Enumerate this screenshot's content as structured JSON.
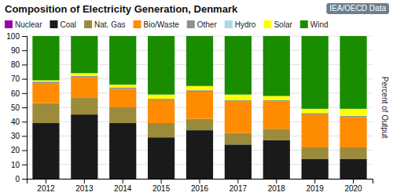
{
  "chart_data": {
    "type": "bar",
    "stacked": true,
    "title": "Composition of Electricity Generation, Denmark",
    "annotations": [
      "IEA/OECD Data"
    ],
    "y_label": "Percent of Output",
    "categories": [
      "2012",
      "2013",
      "2014",
      "2015",
      "2016",
      "2017",
      "2018",
      "2019",
      "2020"
    ],
    "series": [
      {
        "name": "Nuclear",
        "color": "#9B00AA",
        "values": [
          0,
          0,
          0,
          0,
          0,
          0,
          0,
          0,
          0
        ]
      },
      {
        "name": "Coal",
        "color": "#1A1A1A",
        "values": [
          39,
          45,
          39,
          29,
          34,
          24,
          27,
          14,
          14
        ]
      },
      {
        "name": "Nat. Gas",
        "color": "#9B8B3A",
        "values": [
          14,
          12,
          11,
          10,
          8,
          8,
          8,
          8,
          8
        ]
      },
      {
        "name": "Bio/Waste",
        "color": "#FF8C00",
        "values": [
          14,
          14,
          13,
          16,
          19,
          22,
          19,
          23,
          21
        ]
      },
      {
        "name": "Other",
        "color": "#909090",
        "values": [
          1,
          1,
          1,
          1,
          1,
          1,
          1,
          1,
          1
        ]
      },
      {
        "name": "Hydro",
        "color": "#ADD8E6",
        "values": [
          0,
          0,
          0,
          0,
          0,
          0,
          0,
          0,
          0
        ]
      },
      {
        "name": "Solar",
        "color": "#FFFF00",
        "values": [
          1,
          2,
          2,
          3,
          3,
          4,
          3,
          3,
          5
        ]
      },
      {
        "name": "Wind",
        "color": "#1A8C00",
        "values": [
          31,
          26,
          34,
          41,
          35,
          41,
          42,
          51,
          51
        ]
      }
    ],
    "ylim": [
      0,
      100
    ],
    "yticks": [
      0,
      10,
      20,
      30,
      40,
      50,
      60,
      70,
      80,
      90,
      100
    ],
    "grid": true,
    "legend": "upper left"
  }
}
